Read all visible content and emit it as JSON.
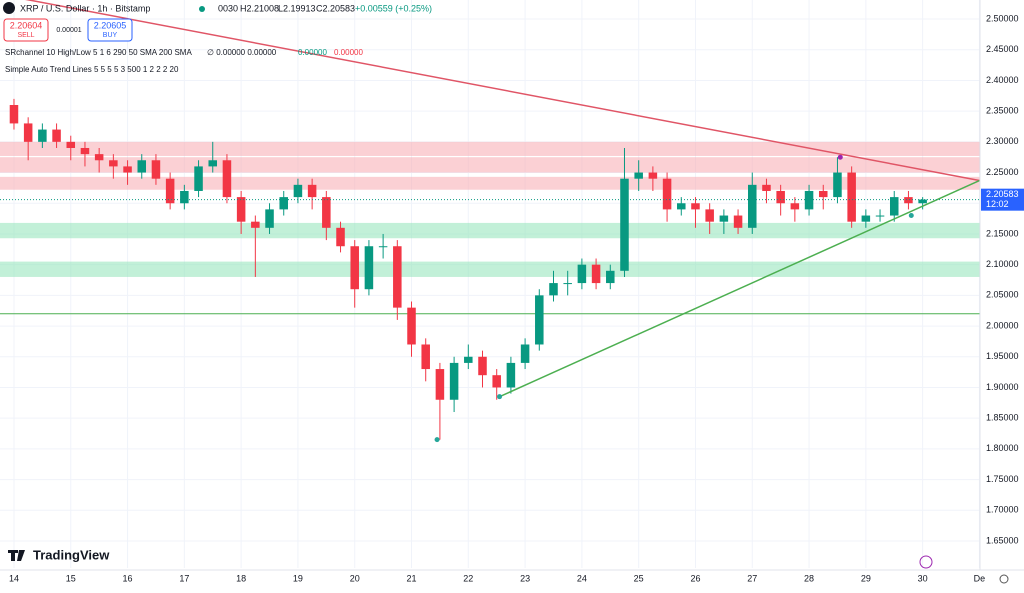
{
  "header": {
    "symbol": "XRP / U.S. Dollar · 1h · Bitstamp",
    "open": "0030",
    "high": "H2.21008",
    "low": "L2.19913",
    "close": "C2.20583",
    "change": "+0.00559 (+0.25%)",
    "sell_price": "2.20604",
    "sell": "SELL",
    "spread": "0.00001",
    "buy_price": "2.20605",
    "buy": "BUY",
    "indicator_1": "SRchannel 10 High/Low 5 1 6 290 50 SMA 200 SMA",
    "indicator_1_values": "∅ 0.00000 0.00000",
    "indicator_1_green": "0.00000",
    "indicator_1_red": "0.00000",
    "indicator_2": "Simple Auto Trend Lines 5 5 5 5 3 500 1 2 2 2 20"
  },
  "logo": "TradingView",
  "chart_data": {
    "type": "candlestick",
    "x": [
      14,
      14.25,
      14.5,
      14.75,
      15,
      15.25,
      15.5,
      15.75,
      16,
      16.25,
      16.5,
      16.75,
      17,
      17.25,
      17.5,
      17.75,
      18,
      18.25,
      18.5,
      18.75,
      19,
      19.25,
      19.5,
      19.75,
      20,
      20.25,
      20.5,
      20.75,
      21,
      21.25,
      21.5,
      21.75,
      22,
      22.25,
      22.5,
      22.75,
      23,
      23.25,
      23.5,
      23.75,
      24,
      24.25,
      24.5,
      24.75,
      25,
      25.25,
      25.5,
      25.75,
      26,
      26.25,
      26.5,
      26.75,
      27,
      27.25,
      27.5,
      27.75,
      28,
      28.25,
      28.5,
      28.75,
      29,
      29.25,
      29.5,
      29.75,
      30
    ],
    "open": [
      2.36,
      2.33,
      2.3,
      2.32,
      2.3,
      2.29,
      2.28,
      2.27,
      2.26,
      2.25,
      2.27,
      2.24,
      2.2,
      2.22,
      2.26,
      2.27,
      2.21,
      2.17,
      2.16,
      2.19,
      2.21,
      2.23,
      2.21,
      2.16,
      2.13,
      2.06,
      2.13,
      2.13,
      2.03,
      1.97,
      1.93,
      1.88,
      1.94,
      1.95,
      1.92,
      1.9,
      1.94,
      1.97,
      2.05,
      2.07,
      2.07,
      2.1,
      2.07,
      2.09,
      2.24,
      2.25,
      2.24,
      2.19,
      2.2,
      2.19,
      2.17,
      2.18,
      2.16,
      2.23,
      2.22,
      2.2,
      2.19,
      2.22,
      2.21,
      2.25,
      2.17,
      2.18,
      2.18,
      2.21,
      2.2
    ],
    "high": [
      2.37,
      2.34,
      2.33,
      2.33,
      2.31,
      2.3,
      2.29,
      2.28,
      2.27,
      2.28,
      2.28,
      2.25,
      2.23,
      2.27,
      2.3,
      2.28,
      2.22,
      2.18,
      2.2,
      2.22,
      2.24,
      2.24,
      2.22,
      2.17,
      2.14,
      2.14,
      2.15,
      2.14,
      2.04,
      1.98,
      1.94,
      1.95,
      1.97,
      1.96,
      1.93,
      1.95,
      1.98,
      2.06,
      2.09,
      2.09,
      2.11,
      2.11,
      2.1,
      2.29,
      2.27,
      2.26,
      2.25,
      2.21,
      2.21,
      2.2,
      2.19,
      2.19,
      2.25,
      2.24,
      2.23,
      2.21,
      2.23,
      2.23,
      2.275,
      2.26,
      2.19,
      2.19,
      2.22,
      2.22,
      2.21
    ],
    "low": [
      2.32,
      2.27,
      2.29,
      2.29,
      2.27,
      2.26,
      2.25,
      2.24,
      2.23,
      2.24,
      2.23,
      2.19,
      2.19,
      2.21,
      2.25,
      2.2,
      2.15,
      2.08,
      2.15,
      2.18,
      2.2,
      2.19,
      2.14,
      2.12,
      2.03,
      2.05,
      2.11,
      2.01,
      1.95,
      1.91,
      1.815,
      1.86,
      1.93,
      1.9,
      1.88,
      1.89,
      1.93,
      1.96,
      2.04,
      2.05,
      2.06,
      2.06,
      2.06,
      2.08,
      2.22,
      2.22,
      2.17,
      2.18,
      2.16,
      2.15,
      2.15,
      2.15,
      2.15,
      2.2,
      2.18,
      2.17,
      2.18,
      2.19,
      2.2,
      2.16,
      2.16,
      2.17,
      2.17,
      2.19,
      2.19
    ],
    "close": [
      2.33,
      2.3,
      2.32,
      2.3,
      2.29,
      2.28,
      2.27,
      2.26,
      2.25,
      2.27,
      2.24,
      2.2,
      2.22,
      2.26,
      2.27,
      2.21,
      2.17,
      2.16,
      2.19,
      2.21,
      2.23,
      2.21,
      2.16,
      2.13,
      2.06,
      2.13,
      2.13,
      2.03,
      1.97,
      1.93,
      1.88,
      1.94,
      1.95,
      1.92,
      1.9,
      1.94,
      1.97,
      2.05,
      2.07,
      2.07,
      2.1,
      2.07,
      2.09,
      2.24,
      2.25,
      2.24,
      2.19,
      2.2,
      2.19,
      2.17,
      2.18,
      2.16,
      2.23,
      2.22,
      2.2,
      2.19,
      2.22,
      2.21,
      2.25,
      2.17,
      2.18,
      2.18,
      2.21,
      2.2,
      2.206
    ],
    "up_color": "#089981",
    "down_color": "#f23645",
    "xlim": [
      13.754,
      31.01
    ],
    "ylim": [
      1.606,
      2.531
    ],
    "xticks": [
      14,
      15,
      16,
      17,
      18,
      19,
      20,
      21,
      22,
      23,
      24,
      25,
      26,
      27,
      28,
      29,
      30,
      {
        "value": 31,
        "label": "De"
      }
    ],
    "yticks": [
      {
        "value": 1.65,
        "label": "1.65000"
      },
      {
        "value": 1.7,
        "label": "1.70000"
      },
      {
        "value": 1.75,
        "label": "1.75000"
      },
      {
        "value": 1.8,
        "label": "1.80000"
      },
      {
        "value": 1.85,
        "label": "1.85000"
      },
      {
        "value": 1.9,
        "label": "1.90000"
      },
      {
        "value": 1.95,
        "label": "1.95000"
      },
      {
        "value": 2.0,
        "label": "2.00000"
      },
      {
        "value": 2.05,
        "label": "2.05000"
      },
      {
        "value": 2.1,
        "label": "2.10000"
      },
      {
        "value": 2.15,
        "label": "2.15000"
      },
      {
        "value": 2.2,
        "label": "2.20000"
      },
      {
        "value": 2.25,
        "label": "2.25000"
      },
      {
        "value": 2.3,
        "label": "2.30000"
      },
      {
        "value": 2.35,
        "label": "2.35000"
      },
      {
        "value": 2.4,
        "label": "2.40000"
      },
      {
        "value": 2.45,
        "label": "2.45000"
      },
      {
        "value": 2.5,
        "label": "2.50000"
      }
    ],
    "zones": [
      {
        "low": 2.277,
        "high": 2.3,
        "color": "#f7a9b0"
      },
      {
        "low": 2.25,
        "high": 2.275,
        "color": "#f7a9b0"
      },
      {
        "low": 2.222,
        "high": 2.243,
        "color": "#f7a9b0"
      },
      {
        "low": 2.143,
        "high": 2.168,
        "color": "#8fe3b8"
      },
      {
        "low": 2.08,
        "high": 2.105,
        "color": "#8fe3b8"
      }
    ],
    "level_line": {
      "value": 2.02,
      "color": "#4caf50"
    },
    "trend_lines": [
      {
        "x": [
          13.754,
          31.0
        ],
        "y": [
          2.54,
          2.237
        ],
        "color": "#e05566"
      },
      {
        "x": [
          22.55,
          31.0
        ],
        "y": [
          1.885,
          2.237
        ],
        "color": "#4caf50"
      }
    ],
    "points": [
      {
        "x": 21.45,
        "y": 1.815,
        "color": "#26a69a"
      },
      {
        "x": 22.55,
        "y": 1.885,
        "color": "#26a69a"
      },
      {
        "x": 28.55,
        "y": 2.275,
        "color": "#9c27b0"
      },
      {
        "x": 29.8,
        "y": 2.18,
        "color": "#26a69a"
      }
    ],
    "last_price": {
      "value": 2.20583,
      "label": "2.20583"
    },
    "countdown": "12:02",
    "price_label_color": "#2962ff"
  }
}
